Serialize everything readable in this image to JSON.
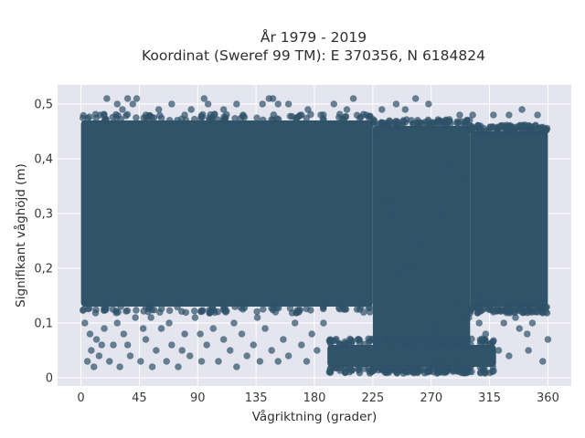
{
  "chart_data": {
    "type": "scatter",
    "title_lines": [
      "År 1979 - 2019",
      "Koordinat (Sweref 99 TM): E 370356, N 6184824"
    ],
    "xlabel": "Vågriktning (grader)",
    "ylabel": "Signifikant våghöjd (m)",
    "xlim": [
      -18,
      378
    ],
    "ylim": [
      -0.015,
      0.535
    ],
    "xticks": [
      0,
      45,
      90,
      135,
      180,
      225,
      270,
      315,
      360
    ],
    "xtick_labels": [
      "0",
      "45",
      "90",
      "135",
      "180",
      "225",
      "270",
      "315",
      "360"
    ],
    "yticks": [
      0,
      0.1,
      0.2,
      0.3,
      0.4,
      0.5
    ],
    "ytick_labels": [
      "0",
      "0,1",
      "0,2",
      "0,3",
      "0,4",
      "0,5"
    ],
    "grid": true,
    "marker_color": "#2f5369",
    "marker_opacity": 0.7,
    "plot_bg": "#e5e5ef",
    "dense_regions": [
      {
        "x": [
          0,
          225
        ],
        "y": [
          0.13,
          0.47
        ]
      },
      {
        "x": [
          225,
          300
        ],
        "y": [
          0.02,
          0.46
        ]
      },
      {
        "x": [
          300,
          360
        ],
        "y": [
          0.13,
          0.45
        ]
      },
      {
        "x": [
          190,
          320
        ],
        "y": [
          0.02,
          0.06
        ]
      }
    ],
    "outlier_points": [
      [
        5,
        0.03
      ],
      [
        8,
        0.05
      ],
      [
        10,
        0.02
      ],
      [
        14,
        0.04
      ],
      [
        18,
        0.09
      ],
      [
        22,
        0.03
      ],
      [
        25,
        0.06
      ],
      [
        30,
        0.02
      ],
      [
        33,
        0.08
      ],
      [
        38,
        0.04
      ],
      [
        42,
        0.11
      ],
      [
        46,
        0.03
      ],
      [
        50,
        0.07
      ],
      [
        55,
        0.02
      ],
      [
        58,
        0.05
      ],
      [
        62,
        0.09
      ],
      [
        66,
        0.03
      ],
      [
        70,
        0.06
      ],
      [
        75,
        0.02
      ],
      [
        80,
        0.08
      ],
      [
        84,
        0.04
      ],
      [
        88,
        0.11
      ],
      [
        93,
        0.03
      ],
      [
        97,
        0.06
      ],
      [
        102,
        0.09
      ],
      [
        106,
        0.03
      ],
      [
        110,
        0.07
      ],
      [
        115,
        0.05
      ],
      [
        120,
        0.02
      ],
      [
        124,
        0.08
      ],
      [
        128,
        0.04
      ],
      [
        133,
        0.06
      ],
      [
        138,
        0.03
      ],
      [
        142,
        0.09
      ],
      [
        147,
        0.05
      ],
      [
        152,
        0.03
      ],
      [
        156,
        0.07
      ],
      [
        160,
        0.04
      ],
      [
        165,
        0.1
      ],
      [
        170,
        0.06
      ],
      [
        174,
        0.03
      ],
      [
        178,
        0.08
      ],
      [
        182,
        0.05
      ],
      [
        187,
        0.1
      ],
      [
        12,
        0.07
      ],
      [
        28,
        0.1
      ],
      [
        48,
        0.09
      ],
      [
        68,
        0.1
      ],
      [
        92,
        0.08
      ],
      [
        118,
        0.1
      ],
      [
        3,
        0.1
      ],
      [
        7,
        0.08
      ],
      [
        16,
        0.06
      ],
      [
        36,
        0.06
      ],
      [
        54,
        0.11
      ],
      [
        78,
        0.05
      ],
      [
        100,
        0.12
      ],
      [
        136,
        0.11
      ],
      [
        150,
        0.12
      ],
      [
        168,
        0.12
      ],
      [
        20,
        0.51
      ],
      [
        28,
        0.5
      ],
      [
        32,
        0.49
      ],
      [
        36,
        0.51
      ],
      [
        40,
        0.5
      ],
      [
        43,
        0.51
      ],
      [
        60,
        0.49
      ],
      [
        70,
        0.5
      ],
      [
        85,
        0.49
      ],
      [
        95,
        0.51
      ],
      [
        98,
        0.5
      ],
      [
        110,
        0.49
      ],
      [
        120,
        0.5
      ],
      [
        140,
        0.5
      ],
      [
        145,
        0.51
      ],
      [
        148,
        0.51
      ],
      [
        152,
        0.5
      ],
      [
        160,
        0.5
      ],
      [
        175,
        0.49
      ],
      [
        195,
        0.5
      ],
      [
        205,
        0.49
      ],
      [
        210,
        0.51
      ],
      [
        232,
        0.49
      ],
      [
        243,
        0.5
      ],
      [
        258,
        0.51
      ],
      [
        268,
        0.5
      ],
      [
        292,
        0.48
      ],
      [
        302,
        0.48
      ],
      [
        318,
        0.48
      ],
      [
        330,
        0.48
      ],
      [
        340,
        0.49
      ],
      [
        352,
        0.48
      ],
      [
        15,
        0.48
      ],
      [
        50,
        0.48
      ],
      [
        80,
        0.48
      ],
      [
        125,
        0.48
      ],
      [
        170,
        0.48
      ],
      [
        185,
        0.48
      ],
      [
        220,
        0.48
      ],
      [
        250,
        0.49
      ],
      [
        236,
        0.32
      ],
      [
        240,
        0.3
      ],
      [
        261,
        0.24
      ],
      [
        265,
        0.17
      ],
      [
        244,
        0.19
      ],
      [
        278,
        0.3
      ],
      [
        284,
        0.39
      ],
      [
        296,
        0.36
      ],
      [
        307,
        0.1
      ],
      [
        312,
        0.08
      ],
      [
        315,
        0.06
      ],
      [
        322,
        0.05
      ],
      [
        330,
        0.04
      ],
      [
        338,
        0.09
      ],
      [
        345,
        0.05
      ],
      [
        348,
        0.1
      ],
      [
        352,
        0.12
      ],
      [
        356,
        0.03
      ],
      [
        360,
        0.07
      ],
      [
        344,
        0.08
      ],
      [
        335,
        0.11
      ],
      [
        326,
        0.1
      ],
      [
        318,
        0.12
      ],
      [
        289,
        0.14
      ],
      [
        274,
        0.09
      ],
      [
        299,
        0.11
      ],
      [
        306,
        0.15
      ],
      [
        253,
        0.2
      ],
      [
        228,
        0.44
      ],
      [
        303,
        0.43
      ]
    ]
  }
}
